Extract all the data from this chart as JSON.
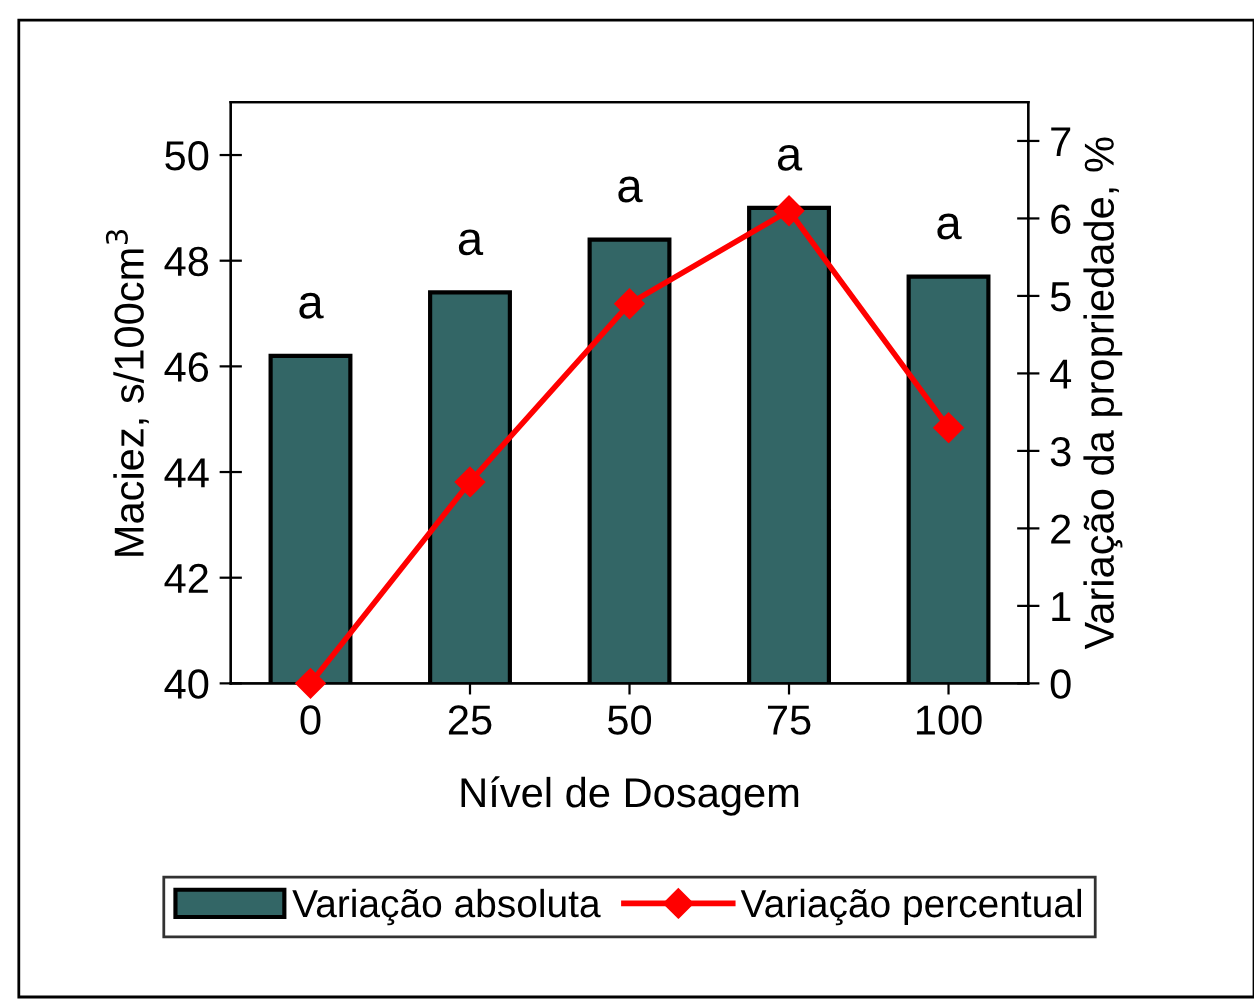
{
  "chart_data": {
    "type": "bar",
    "xlabel": "Nível de Dosagem",
    "ylabel": "Maciez, s/100cm$^{3}$",
    "y2label": "Variação da propriedade, %",
    "categories": [
      "0",
      "25",
      "50",
      "75",
      "100"
    ],
    "series": [
      {
        "name": "Variação absoluta",
        "color": "#336666",
        "values": [
          46.2,
          47.4,
          48.4,
          49.0,
          47.7
        ]
      },
      {
        "name": "Variação percentual",
        "type": "line",
        "axis": "y2",
        "color": "#ff0000",
        "marker": "diamond",
        "values": [
          0,
          2.6,
          4.9,
          6.1,
          3.3
        ],
        "errors": [
          0.15,
          0.15,
          0.15,
          0.15,
          0.15
        ]
      }
    ],
    "ylim": [
      40,
      51
    ],
    "yticks": [
      40,
      42,
      44,
      46,
      48,
      50
    ],
    "y2lim": [
      0,
      7.5
    ],
    "y2ticks": [
      0,
      1,
      2,
      3,
      4,
      5,
      6,
      7
    ],
    "annotations": [
      {
        "text": "a",
        "x": "0",
        "y": 46.2
      },
      {
        "text": "a",
        "x": "25",
        "y": 47.4
      },
      {
        "text": "a",
        "x": "50",
        "y": 48.4
      },
      {
        "text": "a",
        "x": "75",
        "y": 49.0
      },
      {
        "text": "a",
        "x": "100",
        "y": 47.7
      }
    ],
    "legend": "bottom",
    "grid": false
  }
}
